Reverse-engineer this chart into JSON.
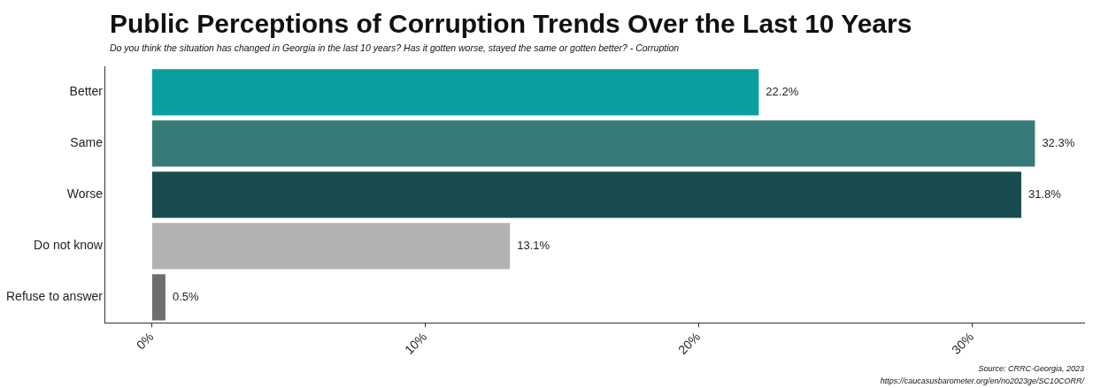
{
  "chart_data": {
    "type": "bar",
    "orientation": "horizontal",
    "title": "Public Perceptions of Corruption Trends Over the Last 10 Years",
    "subtitle": "Do you think the situation has changed in Georgia in the last 10 years? Has it gotten worse, stayed the same or gotten better? - Corruption",
    "categories": [
      "Better",
      "Same",
      "Worse",
      "Do not know",
      "Refuse to answer"
    ],
    "values": [
      22.2,
      32.3,
      31.8,
      13.1,
      0.5
    ],
    "value_labels": [
      "22.2%",
      "32.3%",
      "31.8%",
      "13.1%",
      "0.5%"
    ],
    "colors": [
      "#0a9e9e",
      "#367b78",
      "#184c4e",
      "#b2b2b2",
      "#6e6e6e"
    ],
    "xlim": [
      -1.7,
      34.1
    ],
    "xticks": [
      {
        "value": 0,
        "label": "0%"
      },
      {
        "value": 10,
        "label": "10%"
      },
      {
        "value": 20,
        "label": "20%"
      },
      {
        "value": 30,
        "label": "30%"
      }
    ],
    "grid": false,
    "annotations": [
      "Source: CRRC-Georgia, 2023",
      "https://caucasusbarometer.org/en/no2023ge/SC10CORR/"
    ]
  }
}
